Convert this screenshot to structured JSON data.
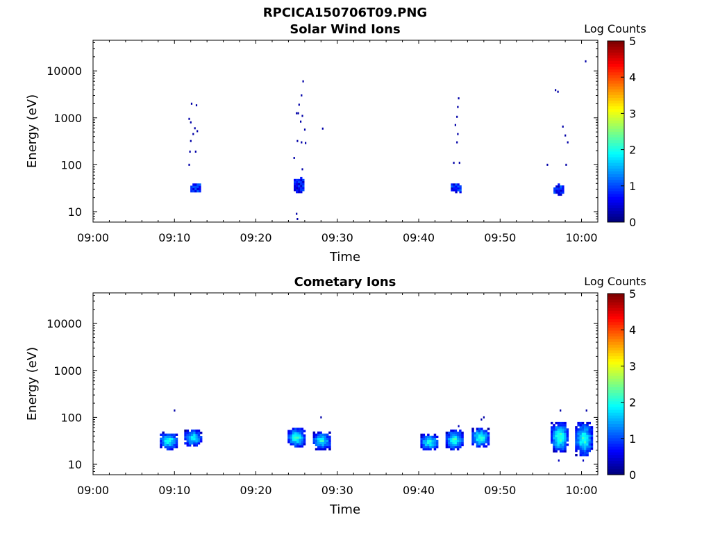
{
  "figure": {
    "title": "RPCICA150706T09.PNG",
    "colorbar_label": "Log Counts"
  },
  "chart_data": [
    {
      "type": "heatmap",
      "title": "Solar Wind Ions",
      "xlabel": "Time",
      "ylabel": "Energy (eV)",
      "y_scale": "log",
      "xlim": [
        "09:00",
        "10:02"
      ],
      "ylim": [
        6,
        45000
      ],
      "x_ticks": [
        "09:00",
        "09:10",
        "09:20",
        "09:30",
        "09:40",
        "09:50",
        "10:00"
      ],
      "y_ticks": [
        "10",
        "100",
        "1000",
        "10000"
      ],
      "colorbar": {
        "label": "Log Counts",
        "range": [
          0,
          5
        ],
        "ticks": [
          "0",
          "1",
          "2",
          "3",
          "4",
          "5"
        ],
        "colormap": "jet"
      },
      "clusters": [
        {
          "t": 12.6,
          "e_low": 26,
          "e_high": 40,
          "level": 1.0
        },
        {
          "t": 25.3,
          "e_low": 25,
          "e_high": 55,
          "level": 0.8
        },
        {
          "t": 44.6,
          "e_low": 25,
          "e_high": 40,
          "level": 1.0
        },
        {
          "t": 57.2,
          "e_low": 22,
          "e_high": 40,
          "level": 1.0
        }
      ],
      "points": [
        {
          "t": 12.1,
          "e": 2000,
          "level": 0.2
        },
        {
          "t": 12.7,
          "e": 1850,
          "level": 0.2
        },
        {
          "t": 11.8,
          "e": 950,
          "level": 0.2
        },
        {
          "t": 12.0,
          "e": 800,
          "level": 0.2
        },
        {
          "t": 12.5,
          "e": 600,
          "level": 0.2
        },
        {
          "t": 12.8,
          "e": 520,
          "level": 0.2
        },
        {
          "t": 12.3,
          "e": 450,
          "level": 0.2
        },
        {
          "t": 12.0,
          "e": 320,
          "level": 0.2
        },
        {
          "t": 11.9,
          "e": 190,
          "level": 0.2
        },
        {
          "t": 12.6,
          "e": 190,
          "level": 0.2
        },
        {
          "t": 11.8,
          "e": 100,
          "level": 0.2
        },
        {
          "t": 25.8,
          "e": 6000,
          "level": 0.2
        },
        {
          "t": 25.6,
          "e": 3000,
          "level": 0.2
        },
        {
          "t": 25.3,
          "e": 1900,
          "level": 0.2
        },
        {
          "t": 25.0,
          "e": 1250,
          "level": 0.2
        },
        {
          "t": 25.2,
          "e": 1250,
          "level": 0.2
        },
        {
          "t": 25.7,
          "e": 1100,
          "level": 0.2
        },
        {
          "t": 25.5,
          "e": 830,
          "level": 0.2
        },
        {
          "t": 26.0,
          "e": 560,
          "level": 0.2
        },
        {
          "t": 28.2,
          "e": 590,
          "level": 0.2
        },
        {
          "t": 25.1,
          "e": 320,
          "level": 0.2
        },
        {
          "t": 25.6,
          "e": 300,
          "level": 0.2
        },
        {
          "t": 26.1,
          "e": 290,
          "level": 0.2
        },
        {
          "t": 24.7,
          "e": 140,
          "level": 0.2
        },
        {
          "t": 25.7,
          "e": 80,
          "level": 0.2
        },
        {
          "t": 25.0,
          "e": 9,
          "level": 0.2
        },
        {
          "t": 25.1,
          "e": 7,
          "level": 0.2
        },
        {
          "t": 44.9,
          "e": 2600,
          "level": 0.2
        },
        {
          "t": 44.8,
          "e": 1700,
          "level": 0.2
        },
        {
          "t": 44.7,
          "e": 1050,
          "level": 0.2
        },
        {
          "t": 44.5,
          "e": 700,
          "level": 0.2
        },
        {
          "t": 44.8,
          "e": 450,
          "level": 0.2
        },
        {
          "t": 44.7,
          "e": 300,
          "level": 0.2
        },
        {
          "t": 44.3,
          "e": 110,
          "level": 0.2
        },
        {
          "t": 45.0,
          "e": 110,
          "level": 0.2
        },
        {
          "t": 56.8,
          "e": 3900,
          "level": 0.2
        },
        {
          "t": 57.1,
          "e": 3600,
          "level": 0.2
        },
        {
          "t": 57.7,
          "e": 650,
          "level": 0.2
        },
        {
          "t": 58.0,
          "e": 420,
          "level": 0.2
        },
        {
          "t": 58.3,
          "e": 300,
          "level": 0.2
        },
        {
          "t": 55.8,
          "e": 100,
          "level": 0.2
        },
        {
          "t": 58.1,
          "e": 100,
          "level": 0.2
        },
        {
          "t": 60.5,
          "e": 16000,
          "level": 0.2
        }
      ]
    },
    {
      "type": "heatmap",
      "title": "Cometary Ions",
      "xlabel": "Time",
      "ylabel": "Energy (eV)",
      "y_scale": "log",
      "xlim": [
        "09:00",
        "10:02"
      ],
      "ylim": [
        6,
        45000
      ],
      "x_ticks": [
        "09:00",
        "09:10",
        "09:20",
        "09:30",
        "09:40",
        "09:50",
        "10:00"
      ],
      "y_ticks": [
        "10",
        "100",
        "1000",
        "10000"
      ],
      "colorbar": {
        "label": "Log Counts",
        "range": [
          0,
          5
        ],
        "ticks": [
          "0",
          "1",
          "2",
          "3",
          "4",
          "5"
        ],
        "colormap": "jet"
      },
      "clusters": [
        {
          "t": 9.3,
          "e_low": 20,
          "e_high": 50,
          "level": 2.3
        },
        {
          "t": 12.3,
          "e_low": 24,
          "e_high": 55,
          "level": 2.2
        },
        {
          "t": 25.0,
          "e_low": 23,
          "e_high": 60,
          "level": 2.3
        },
        {
          "t": 28.1,
          "e_low": 20,
          "e_high": 50,
          "level": 2.2
        },
        {
          "t": 41.3,
          "e_low": 20,
          "e_high": 45,
          "level": 2.3
        },
        {
          "t": 44.4,
          "e_low": 20,
          "e_high": 55,
          "level": 2.3
        },
        {
          "t": 47.6,
          "e_low": 23,
          "e_high": 60,
          "level": 2.4
        },
        {
          "t": 57.3,
          "e_low": 18,
          "e_high": 80,
          "level": 2.4
        },
        {
          "t": 60.3,
          "e_low": 15,
          "e_high": 80,
          "level": 2.3
        }
      ],
      "points": [
        {
          "t": 10.0,
          "e": 140,
          "level": 0.2
        },
        {
          "t": 28.0,
          "e": 100,
          "level": 0.2
        },
        {
          "t": 44.9,
          "e": 65,
          "level": 0.3
        },
        {
          "t": 47.7,
          "e": 90,
          "level": 0.2
        },
        {
          "t": 48.0,
          "e": 100,
          "level": 0.2
        },
        {
          "t": 57.4,
          "e": 140,
          "level": 0.2
        },
        {
          "t": 60.6,
          "e": 140,
          "level": 0.2
        },
        {
          "t": 57.2,
          "e": 12,
          "level": 0.3
        },
        {
          "t": 60.2,
          "e": 12,
          "level": 0.3
        }
      ]
    }
  ]
}
